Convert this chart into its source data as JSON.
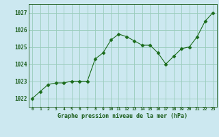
{
  "x": [
    0,
    1,
    2,
    3,
    4,
    5,
    6,
    7,
    8,
    9,
    10,
    11,
    12,
    13,
    14,
    15,
    16,
    17,
    18,
    19,
    20,
    21,
    22,
    23
  ],
  "y": [
    1022.0,
    1022.4,
    1022.8,
    1022.9,
    1022.9,
    1023.0,
    1023.0,
    1023.0,
    1024.3,
    1024.65,
    1025.4,
    1025.75,
    1025.6,
    1025.35,
    1025.1,
    1025.1,
    1024.65,
    1024.0,
    1024.45,
    1024.9,
    1025.0,
    1025.6,
    1026.5,
    1027.0
  ],
  "line_color": "#1a6b1a",
  "marker_color": "#1a6b1a",
  "bg_color": "#cce8f0",
  "grid_color": "#99ccbb",
  "title_color": "#1a5c1a",
  "xlabel": "Graphe pression niveau de la mer (hPa)",
  "ylim": [
    1021.5,
    1027.5
  ],
  "yticks": [
    1022,
    1023,
    1024,
    1025,
    1026,
    1027
  ],
  "xticks": [
    0,
    1,
    2,
    3,
    4,
    5,
    6,
    7,
    8,
    9,
    10,
    11,
    12,
    13,
    14,
    15,
    16,
    17,
    18,
    19,
    20,
    21,
    22,
    23
  ]
}
